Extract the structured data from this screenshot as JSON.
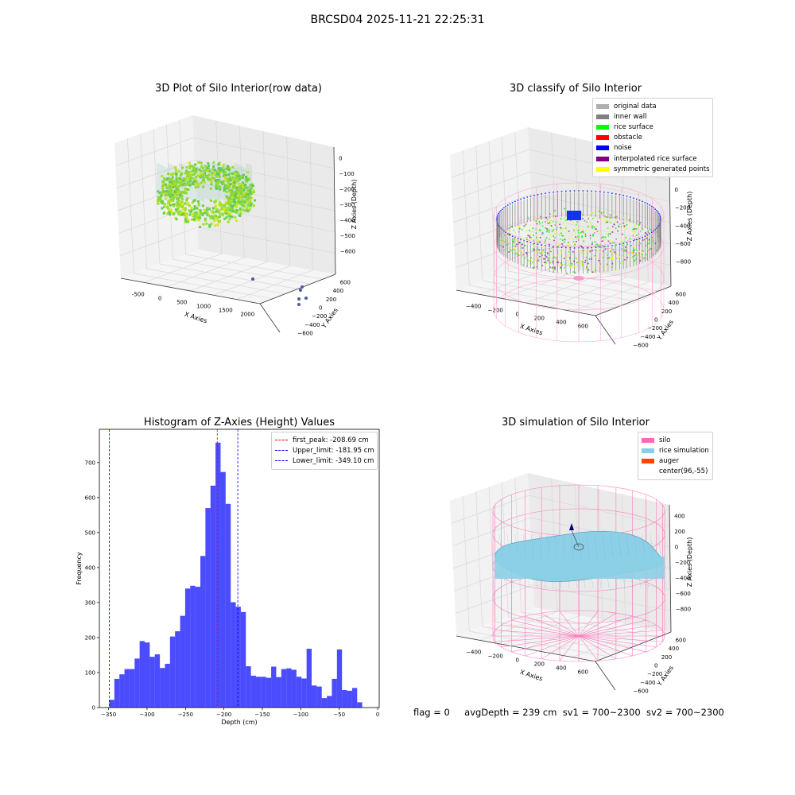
{
  "suptitle": "BRCSD04 2025-11-21 22:25:31",
  "panels": {
    "raw": {
      "title": "3D Plot of Silo Interior(row data)",
      "xlabel": "X Axies",
      "ylabel": "Y Axies",
      "zlabel": "Z Axies (Depth)",
      "xticks": [
        "-500",
        "0",
        "500",
        "1000",
        "1500",
        "2000"
      ],
      "yticks": [
        "600",
        "400",
        "200",
        "0",
        "−200",
        "−400",
        "−600"
      ],
      "zticks": [
        "0",
        "−100",
        "−200",
        "−300",
        "−400",
        "−500",
        "−600"
      ]
    },
    "classify": {
      "title": "3D classify of Silo Interior",
      "xlabel": "X Axies",
      "ylabel": "Y Axies",
      "zlabel": "Z Axies (Depth)",
      "xticks": [
        "−400",
        "−200",
        "0",
        "200",
        "400",
        "600"
      ],
      "yticks": [
        "600",
        "400",
        "200",
        "0",
        "−200",
        "−400",
        "−600"
      ],
      "zticks": [
        "200",
        "0",
        "−200",
        "−400",
        "−600",
        "−800"
      ],
      "legend": [
        {
          "label": "original data",
          "color": "#b0b0b0"
        },
        {
          "label": "inner wall",
          "color": "#808080"
        },
        {
          "label": "rice surface",
          "color": "#00ff00"
        },
        {
          "label": "obstacle",
          "color": "#ff0000"
        },
        {
          "label": "noise",
          "color": "#0000ff"
        },
        {
          "label": "interpolated rice surface",
          "color": "#800080"
        },
        {
          "label": "symmetric generated points",
          "color": "#ffff00"
        }
      ]
    },
    "simulation": {
      "title": "3D simulation of Silo Interior",
      "xlabel": "X Axies",
      "ylabel": "Y Axies",
      "zlabel": "Z Axies (Depth)",
      "xticks": [
        "−400",
        "−200",
        "0",
        "200",
        "400",
        "600"
      ],
      "yticks": [
        "600",
        "400",
        "200",
        "0",
        "−200",
        "−400",
        "−600"
      ],
      "zticks": [
        "400",
        "200",
        "0",
        "−200",
        "−400",
        "−600",
        "−800"
      ],
      "legend": [
        {
          "label": "silo",
          "color": "#ff69b4"
        },
        {
          "label": "rice simulation",
          "color": "#87ceeb"
        },
        {
          "label": "auger",
          "color": "#ff4500"
        },
        {
          "label": "center(96,-55)",
          "color": "#ffffff"
        }
      ]
    }
  },
  "chart_data": {
    "type": "bar",
    "title": "Histogram of Z-Axies (Height) Values",
    "xlabel": "Depth (cm)",
    "ylabel": "Frequency",
    "xlim": [
      -362,
      2
    ],
    "ylim": [
      0,
      795
    ],
    "xticks": [
      "−350",
      "−300",
      "−250",
      "−200",
      "−150",
      "−100",
      "−50",
      "0"
    ],
    "yticks": [
      "0",
      "100",
      "200",
      "300",
      "400",
      "500",
      "600",
      "700"
    ],
    "bin_start": -349.1,
    "bin_width": 6.58,
    "values": [
      22,
      82,
      95,
      110,
      110,
      140,
      190,
      186,
      145,
      152,
      113,
      125,
      203,
      218,
      262,
      340,
      348,
      345,
      433,
      570,
      634,
      757,
      673,
      582,
      301,
      288,
      273,
      118,
      91,
      88,
      88,
      85,
      117,
      87,
      110,
      112,
      108,
      88,
      83,
      168,
      63,
      60,
      27,
      33,
      82,
      166,
      50,
      48,
      56,
      15
    ],
    "bar_color": "#0000ff",
    "grid": false,
    "legend_position": "top-right",
    "lines": [
      {
        "label": "first_peak: -208.69 cm",
        "x": -208.69,
        "color": "#ff0000"
      },
      {
        "label": "Upper_limit: -181.95 cm",
        "x": -181.95,
        "color": "#0000ff"
      },
      {
        "label": "Lower_limit: -349.10 cm",
        "x": -349.1,
        "color": "#0000ff"
      }
    ]
  },
  "footer": {
    "flag": "flag = 0",
    "avg": "avgDepth = 239 cm",
    "sv1": "sv1 = 700~2300",
    "sv2": "sv2 = 700~2300"
  }
}
